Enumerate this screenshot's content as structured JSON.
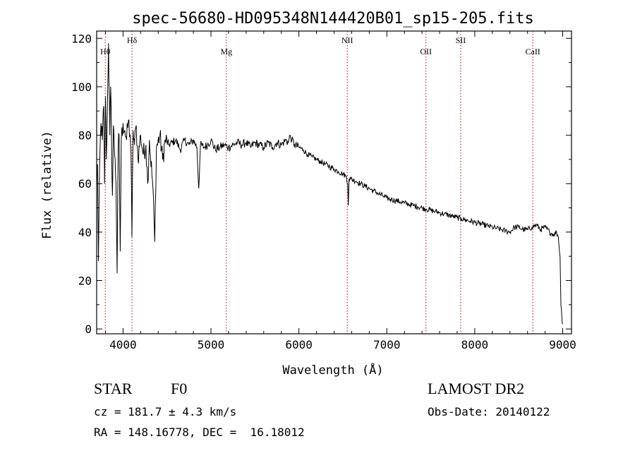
{
  "chart_data": {
    "type": "line",
    "title": "spec-56680-HD095348N144420B01_sp15-205.fits",
    "xlabel": "Wavelength (Å)",
    "ylabel": "Flux (relative)",
    "xlim": [
      3700,
      9100
    ],
    "ylim": [
      -2,
      123
    ],
    "x_ticks": [
      4000,
      5000,
      6000,
      7000,
      8000,
      9000
    ],
    "x_tick_labels": [
      "4000",
      "5000",
      "6000",
      "7000",
      "8000",
      "9000"
    ],
    "y_ticks": [
      0,
      20,
      40,
      60,
      80,
      100,
      120
    ],
    "y_tick_labels": [
      "0",
      "20",
      "40",
      "60",
      "80",
      "100",
      "120"
    ],
    "grid": false,
    "line_color": "#000000",
    "marker_color": "#b00000",
    "spectral_lines": [
      {
        "label": "Hθ",
        "x": 3798
      },
      {
        "label": "Hδ",
        "x": 4102
      },
      {
        "label": "Mg",
        "x": 5175
      },
      {
        "label": "NII",
        "x": 6550
      },
      {
        "label": "OII",
        "x": 7445
      },
      {
        "label": "SII",
        "x": 7840
      },
      {
        "label": "CaII",
        "x": 8660
      }
    ],
    "series": [
      {
        "x": [
          3700,
          3710,
          3720,
          3735,
          3750,
          3765,
          3780,
          3790,
          3800,
          3810,
          3820,
          3835,
          3850,
          3860,
          3870,
          3880,
          3890,
          3900,
          3910,
          3920,
          3933,
          3945,
          3955,
          3968,
          3980,
          4000,
          4020,
          4040,
          4060,
          4080,
          4090,
          4101,
          4115,
          4130,
          4150,
          4170,
          4200,
          4230,
          4260,
          4280,
          4300,
          4340,
          4360,
          4380,
          4420,
          4450,
          4480,
          4520,
          4560,
          4600,
          4650,
          4700,
          4750,
          4800,
          4840,
          4861,
          4880,
          4920,
          4960,
          5000,
          5050,
          5100,
          5150,
          5200,
          5250,
          5300,
          5350,
          5400,
          5450,
          5500,
          5550,
          5600,
          5650,
          5700,
          5750,
          5800,
          5850,
          5880,
          5900,
          5920,
          5950,
          6000,
          6050,
          6100,
          6150,
          6200,
          6250,
          6300,
          6350,
          6400,
          6450,
          6500,
          6540,
          6555,
          6562,
          6570,
          6590,
          6650,
          6700,
          6750,
          6800,
          6850,
          6900,
          6950,
          7000,
          7050,
          7100,
          7150,
          7200,
          7250,
          7300,
          7350,
          7400,
          7450,
          7500,
          7550,
          7600,
          7650,
          7700,
          7750,
          7800,
          7850,
          7900,
          7950,
          8000,
          8050,
          8100,
          8150,
          8200,
          8250,
          8300,
          8350,
          8400,
          8450,
          8500,
          8550,
          8600,
          8650,
          8700,
          8750,
          8800,
          8850,
          8900,
          8930,
          8950,
          8970,
          8980,
          8990,
          9000
        ],
        "y": [
          60,
          68,
          28,
          70,
          85,
          78,
          92,
          60,
          96,
          70,
          88,
          118,
          80,
          100,
          75,
          55,
          84,
          76,
          70,
          60,
          23,
          75,
          80,
          32,
          78,
          85,
          82,
          78,
          86,
          80,
          74,
          38,
          82,
          76,
          84,
          70,
          80,
          72,
          76,
          60,
          78,
          58,
          36,
          75,
          80,
          70,
          78,
          76,
          77,
          78,
          74,
          78,
          76,
          78,
          75,
          58,
          76,
          75,
          76,
          78,
          74,
          75,
          76,
          75,
          76,
          77,
          76,
          77,
          75,
          77,
          76,
          75,
          77,
          75,
          77,
          76,
          78,
          77,
          80,
          78,
          76,
          75,
          74,
          72,
          71,
          70,
          69,
          68,
          67,
          66,
          65,
          64,
          63,
          60,
          51,
          62,
          62,
          61,
          60,
          59,
          58,
          57,
          56,
          55,
          54,
          53.5,
          53,
          52.5,
          52,
          51.5,
          51,
          50.5,
          50,
          49.5,
          49,
          48.5,
          48,
          47.5,
          47,
          46.5,
          46,
          45.5,
          45,
          44.5,
          44,
          43.5,
          43,
          42.5,
          42,
          41.5,
          41,
          40.5,
          40,
          42,
          42,
          41,
          41,
          42,
          43,
          41,
          42,
          40,
          39,
          40,
          38,
          30,
          10,
          5,
          2
        ]
      }
    ]
  },
  "info": {
    "object_class": "STAR",
    "subclass": "F0",
    "survey": "LAMOST DR2",
    "cz": "cz = 181.7 ± 4.3 km/s",
    "obs_date": "Obs-Date: 20140122",
    "coords": "RA = 148.16778, DEC =  16.18012"
  }
}
